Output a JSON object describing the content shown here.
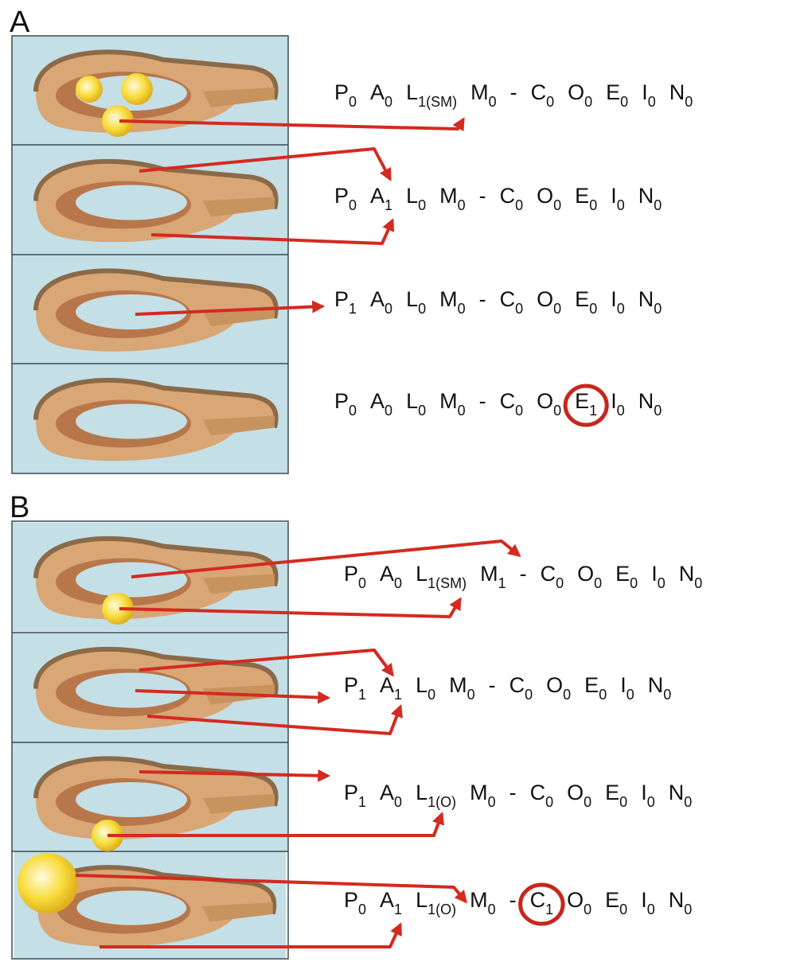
{
  "panels": [
    {
      "label": "A",
      "rows": [
        {
          "tokens": [
            {
              "letter": "P",
              "sub": "0"
            },
            {
              "letter": "A",
              "sub": "0"
            },
            {
              "letter": "L",
              "sub": "1(SM)"
            },
            {
              "letter": "M",
              "sub": "0"
            },
            {
              "letter": "-"
            },
            {
              "letter": "C",
              "sub": "0"
            },
            {
              "letter": "O",
              "sub": "0"
            },
            {
              "letter": "E",
              "sub": "0"
            },
            {
              "letter": "I",
              "sub": "0"
            },
            {
              "letter": "N",
              "sub": "0"
            }
          ]
        },
        {
          "tokens": [
            {
              "letter": "P",
              "sub": "0"
            },
            {
              "letter": "A",
              "sub": "1"
            },
            {
              "letter": "L",
              "sub": "0"
            },
            {
              "letter": "M",
              "sub": "0"
            },
            {
              "letter": "-"
            },
            {
              "letter": "C",
              "sub": "0"
            },
            {
              "letter": "O",
              "sub": "0"
            },
            {
              "letter": "E",
              "sub": "0"
            },
            {
              "letter": "I",
              "sub": "0"
            },
            {
              "letter": "N",
              "sub": "0"
            }
          ]
        },
        {
          "tokens": [
            {
              "letter": "P",
              "sub": "1"
            },
            {
              "letter": "A",
              "sub": "0"
            },
            {
              "letter": "L",
              "sub": "0"
            },
            {
              "letter": "M",
              "sub": "0"
            },
            {
              "letter": "-"
            },
            {
              "letter": "C",
              "sub": "0"
            },
            {
              "letter": "O",
              "sub": "0"
            },
            {
              "letter": "E",
              "sub": "0"
            },
            {
              "letter": "I",
              "sub": "0"
            },
            {
              "letter": "N",
              "sub": "0"
            }
          ]
        },
        {
          "tokens": [
            {
              "letter": "P",
              "sub": "0"
            },
            {
              "letter": "A",
              "sub": "0"
            },
            {
              "letter": "L",
              "sub": "0"
            },
            {
              "letter": "M",
              "sub": "0"
            },
            {
              "letter": "-"
            },
            {
              "letter": "C",
              "sub": "0"
            },
            {
              "letter": "O",
              "sub": "0"
            },
            {
              "letter": "E",
              "sub": "1",
              "circled": true
            },
            {
              "letter": "I",
              "sub": "0"
            },
            {
              "letter": "N",
              "sub": "0"
            }
          ]
        }
      ]
    },
    {
      "label": "B",
      "rows": [
        {
          "tokens": [
            {
              "letter": "P",
              "sub": "0"
            },
            {
              "letter": "A",
              "sub": "0"
            },
            {
              "letter": "L",
              "sub": "1(SM)"
            },
            {
              "letter": "M",
              "sub": "1"
            },
            {
              "letter": "-"
            },
            {
              "letter": "C",
              "sub": "0"
            },
            {
              "letter": "O",
              "sub": "0"
            },
            {
              "letter": "E",
              "sub": "0"
            },
            {
              "letter": "I",
              "sub": "0"
            },
            {
              "letter": "N",
              "sub": "0"
            }
          ]
        },
        {
          "tokens": [
            {
              "letter": "P",
              "sub": "1"
            },
            {
              "letter": "A",
              "sub": "1"
            },
            {
              "letter": "L",
              "sub": "0"
            },
            {
              "letter": "M",
              "sub": "0"
            },
            {
              "letter": "-"
            },
            {
              "letter": "C",
              "sub": "0"
            },
            {
              "letter": "O",
              "sub": "0"
            },
            {
              "letter": "E",
              "sub": "0"
            },
            {
              "letter": "I",
              "sub": "0"
            },
            {
              "letter": "N",
              "sub": "0"
            }
          ]
        },
        {
          "tokens": [
            {
              "letter": "P",
              "sub": "1"
            },
            {
              "letter": "A",
              "sub": "0"
            },
            {
              "letter": "L",
              "sub": "1(O)"
            },
            {
              "letter": "M",
              "sub": "0"
            },
            {
              "letter": "-"
            },
            {
              "letter": "C",
              "sub": "0"
            },
            {
              "letter": "O",
              "sub": "0"
            },
            {
              "letter": "E",
              "sub": "0"
            },
            {
              "letter": "I",
              "sub": "0"
            },
            {
              "letter": "N",
              "sub": "0"
            }
          ]
        },
        {
          "tokens": [
            {
              "letter": "P",
              "sub": "0"
            },
            {
              "letter": "A",
              "sub": "1"
            },
            {
              "letter": "L",
              "sub": "1(O)"
            },
            {
              "letter": "M",
              "sub": "0"
            },
            {
              "letter": "-"
            },
            {
              "letter": "C",
              "sub": "1",
              "circled": true
            },
            {
              "letter": "O",
              "sub": "0"
            },
            {
              "letter": "E",
              "sub": "0"
            },
            {
              "letter": "I",
              "sub": "0"
            },
            {
              "letter": "N",
              "sub": "0"
            }
          ]
        }
      ]
    }
  ]
}
